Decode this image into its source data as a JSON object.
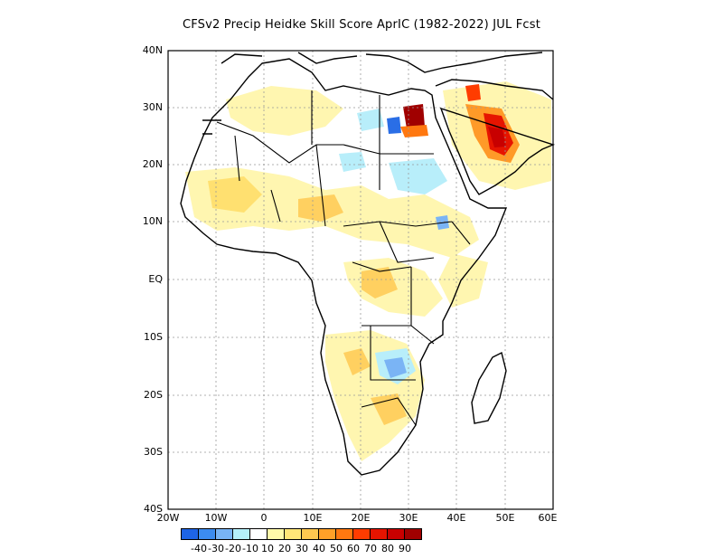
{
  "title": "CFSv2 Precip Heidke Skill Score AprIC (1982-2022) JUL Fcst",
  "axes": {
    "lat_labels": [
      "40N",
      "30N",
      "20N",
      "10N",
      "EQ",
      "10S",
      "20S",
      "30S",
      "40S"
    ],
    "lon_labels": [
      "20W",
      "10W",
      "0",
      "10E",
      "20E",
      "30E",
      "40E",
      "50E",
      "60E"
    ],
    "lat_range": [
      -40,
      40
    ],
    "lon_range": [
      -20,
      60
    ]
  },
  "colorbar": {
    "colors": [
      "#1e64e6",
      "#3c8cf0",
      "#78b4f5",
      "#b4f0fa",
      "#ffffff",
      "#fffaaa",
      "#ffe678",
      "#ffc850",
      "#ffa028",
      "#ff7810",
      "#ff3c00",
      "#e61400",
      "#c80000",
      "#a00000"
    ],
    "labels": [
      "-40",
      "-30",
      "-20",
      "-10",
      "10",
      "20",
      "30",
      "40",
      "50",
      "60",
      "70",
      "80",
      "90"
    ]
  },
  "chart_data": {
    "type": "heatmap",
    "title": "CFSv2 Precip Heidke Skill Score AprIC (1982-2022) JUL Fcst",
    "xlim": [
      -20,
      60
    ],
    "ylim": [
      -40,
      40
    ],
    "grid": true
  }
}
